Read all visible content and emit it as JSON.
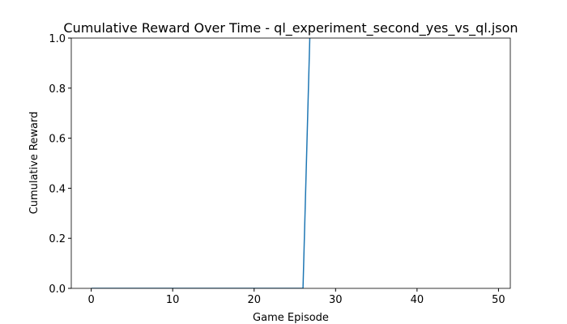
{
  "chart_data": {
    "type": "line",
    "title": "Cumulative Reward Over Time - ql_experiment_second_yes_vs_ql.json",
    "x_label": "Game Episode",
    "y_label": "Cumulative Reward",
    "x": [
      0,
      1,
      2,
      3,
      4,
      5,
      6,
      7,
      8,
      9,
      10,
      11,
      12,
      13,
      14,
      15,
      16,
      17,
      18,
      19,
      20,
      21,
      22,
      23,
      24,
      25,
      26,
      27
    ],
    "series": [
      {
        "color": "#1f77b4",
        "values": [
          0,
          0,
          0,
          0,
          0,
          0,
          0,
          0,
          0,
          0,
          0,
          0,
          0,
          0,
          0,
          0,
          0,
          0,
          0,
          0,
          0,
          0,
          0,
          0,
          0,
          0,
          0,
          1.2
        ]
      }
    ],
    "xlim": [
      -2.45,
      51.45
    ],
    "xticks": [
      0,
      10,
      20,
      30,
      40,
      50
    ],
    "ylim": [
      0,
      1
    ],
    "yticks": [
      {
        "value": 0,
        "label": "0.0"
      },
      {
        "value": 0.2,
        "label": "0.2"
      },
      {
        "value": 0.4,
        "label": "0.4"
      },
      {
        "value": 0.6,
        "label": "0.6"
      },
      {
        "value": 0.8,
        "label": "0.8"
      },
      {
        "value": 1,
        "label": "1.0"
      }
    ],
    "grid": false
  }
}
